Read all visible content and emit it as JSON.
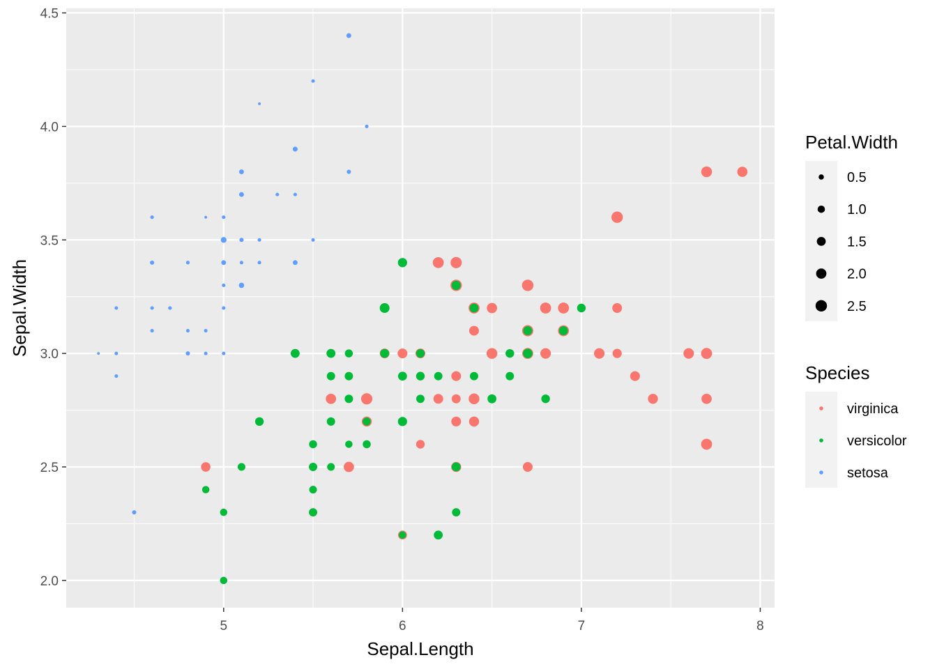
{
  "chart_data": {
    "type": "scatter",
    "xlabel": "Sepal.Length",
    "ylabel": "Sepal.Width",
    "xlim": [
      4.12,
      8.08
    ],
    "ylim": [
      1.88,
      4.52
    ],
    "x_ticks": [
      5,
      6,
      7,
      8
    ],
    "y_ticks": [
      2.0,
      2.5,
      3.0,
      3.5,
      4.0,
      4.5
    ],
    "x_tick_labels": [
      "5",
      "6",
      "7",
      "8"
    ],
    "y_tick_labels": [
      "2.0",
      "2.5",
      "3.0",
      "3.5",
      "4.0",
      "4.5"
    ],
    "grid": true,
    "legend_placement": "right",
    "size_legend": {
      "title": "Petal.Width",
      "values": [
        0.5,
        1.0,
        1.5,
        2.0,
        2.5
      ],
      "labels": [
        "0.5",
        "1.0",
        "1.5",
        "2.0",
        "2.5"
      ]
    },
    "color_legend": {
      "title": "Species",
      "labels": [
        "virginica",
        "versicolor",
        "setosa"
      ]
    },
    "colors": {
      "virginica": "#F8766D",
      "versicolor": "#00BA38",
      "setosa": "#619CFF",
      "panel": "#EBEBEB",
      "grid": "#FFFFFF"
    },
    "series": [
      {
        "name": "virginica",
        "points": [
          [
            6.3,
            3.3,
            2.5
          ],
          [
            5.8,
            2.7,
            1.9
          ],
          [
            7.1,
            3.0,
            2.1
          ],
          [
            6.3,
            2.9,
            1.8
          ],
          [
            6.5,
            3.0,
            2.2
          ],
          [
            7.6,
            3.0,
            2.1
          ],
          [
            4.9,
            2.5,
            1.7
          ],
          [
            7.3,
            2.9,
            1.8
          ],
          [
            6.7,
            2.5,
            1.8
          ],
          [
            7.2,
            3.6,
            2.5
          ],
          [
            6.5,
            3.2,
            2.0
          ],
          [
            6.4,
            2.7,
            1.9
          ],
          [
            6.8,
            3.0,
            2.1
          ],
          [
            5.7,
            2.5,
            2.0
          ],
          [
            5.8,
            2.8,
            2.4
          ],
          [
            6.4,
            3.2,
            2.3
          ],
          [
            6.5,
            3.0,
            1.8
          ],
          [
            7.7,
            3.8,
            2.2
          ],
          [
            7.7,
            2.6,
            2.3
          ],
          [
            6.0,
            2.2,
            1.5
          ],
          [
            6.9,
            3.2,
            2.3
          ],
          [
            5.6,
            2.8,
            2.0
          ],
          [
            7.7,
            2.8,
            2.0
          ],
          [
            6.3,
            2.7,
            1.8
          ],
          [
            6.7,
            3.3,
            2.1
          ],
          [
            7.2,
            3.2,
            1.8
          ],
          [
            6.2,
            2.8,
            1.8
          ],
          [
            6.1,
            3.0,
            1.8
          ],
          [
            6.4,
            2.8,
            2.1
          ],
          [
            7.2,
            3.0,
            1.6
          ],
          [
            7.4,
            2.8,
            1.9
          ],
          [
            7.9,
            3.8,
            2.0
          ],
          [
            6.4,
            2.8,
            2.2
          ],
          [
            6.3,
            2.8,
            1.5
          ],
          [
            6.1,
            2.6,
            1.4
          ],
          [
            7.7,
            3.0,
            2.3
          ],
          [
            6.3,
            3.4,
            2.4
          ],
          [
            6.4,
            3.1,
            1.8
          ],
          [
            6.0,
            3.0,
            1.8
          ],
          [
            6.9,
            3.1,
            2.1
          ],
          [
            6.7,
            3.1,
            2.4
          ],
          [
            6.9,
            3.1,
            2.3
          ],
          [
            6.8,
            3.2,
            2.3
          ],
          [
            6.7,
            3.3,
            2.5
          ],
          [
            6.7,
            3.0,
            2.3
          ],
          [
            6.3,
            2.5,
            1.9
          ],
          [
            6.5,
            3.0,
            2.0
          ],
          [
            6.2,
            3.4,
            2.3
          ],
          [
            5.9,
            3.0,
            1.8
          ]
        ]
      },
      {
        "name": "versicolor",
        "points": [
          [
            7.0,
            3.2,
            1.4
          ],
          [
            6.4,
            3.2,
            1.5
          ],
          [
            6.9,
            3.1,
            1.5
          ],
          [
            5.5,
            2.3,
            1.3
          ],
          [
            6.5,
            2.8,
            1.5
          ],
          [
            5.7,
            2.8,
            1.3
          ],
          [
            6.3,
            3.3,
            1.6
          ],
          [
            4.9,
            2.4,
            1.0
          ],
          [
            6.6,
            2.9,
            1.3
          ],
          [
            5.2,
            2.7,
            1.4
          ],
          [
            5.0,
            2.0,
            1.0
          ],
          [
            5.9,
            3.0,
            1.5
          ],
          [
            6.0,
            2.2,
            1.0
          ],
          [
            6.1,
            2.9,
            1.4
          ],
          [
            5.6,
            2.9,
            1.3
          ],
          [
            6.7,
            3.1,
            1.4
          ],
          [
            5.6,
            3.0,
            1.5
          ],
          [
            5.8,
            2.7,
            1.0
          ],
          [
            6.2,
            2.2,
            1.5
          ],
          [
            5.6,
            2.5,
            1.1
          ],
          [
            5.9,
            3.2,
            1.8
          ],
          [
            6.1,
            2.8,
            1.3
          ],
          [
            6.3,
            2.5,
            1.5
          ],
          [
            6.1,
            2.8,
            1.2
          ],
          [
            6.4,
            2.9,
            1.3
          ],
          [
            6.6,
            3.0,
            1.4
          ],
          [
            6.8,
            2.8,
            1.4
          ],
          [
            6.7,
            3.0,
            1.7
          ],
          [
            6.0,
            2.9,
            1.5
          ],
          [
            5.7,
            2.6,
            1.0
          ],
          [
            5.5,
            2.4,
            1.1
          ],
          [
            5.5,
            2.4,
            1.0
          ],
          [
            5.8,
            2.7,
            1.2
          ],
          [
            6.0,
            2.7,
            1.6
          ],
          [
            5.4,
            3.0,
            1.5
          ],
          [
            6.0,
            3.4,
            1.6
          ],
          [
            6.7,
            3.1,
            1.5
          ],
          [
            6.3,
            2.3,
            1.3
          ],
          [
            5.6,
            3.0,
            1.3
          ],
          [
            5.5,
            2.5,
            1.3
          ],
          [
            5.5,
            2.6,
            1.2
          ],
          [
            6.1,
            3.0,
            1.4
          ],
          [
            5.8,
            2.6,
            1.2
          ],
          [
            5.0,
            2.3,
            1.0
          ],
          [
            5.6,
            2.7,
            1.3
          ],
          [
            5.7,
            3.0,
            1.2
          ],
          [
            5.7,
            2.9,
            1.3
          ],
          [
            6.2,
            2.9,
            1.3
          ],
          [
            5.1,
            2.5,
            1.1
          ],
          [
            5.7,
            2.8,
            1.3
          ]
        ]
      },
      {
        "name": "setosa",
        "points": [
          [
            5.1,
            3.5,
            0.2
          ],
          [
            4.9,
            3.0,
            0.2
          ],
          [
            4.7,
            3.2,
            0.2
          ],
          [
            4.6,
            3.1,
            0.2
          ],
          [
            5.0,
            3.6,
            0.2
          ],
          [
            5.4,
            3.9,
            0.4
          ],
          [
            4.6,
            3.4,
            0.3
          ],
          [
            5.0,
            3.4,
            0.2
          ],
          [
            4.4,
            2.9,
            0.2
          ],
          [
            4.9,
            3.1,
            0.1
          ],
          [
            5.4,
            3.7,
            0.2
          ],
          [
            4.8,
            3.4,
            0.2
          ],
          [
            4.8,
            3.0,
            0.1
          ],
          [
            4.3,
            3.0,
            0.1
          ],
          [
            5.8,
            4.0,
            0.2
          ],
          [
            5.7,
            4.4,
            0.4
          ],
          [
            5.4,
            3.9,
            0.4
          ],
          [
            5.1,
            3.5,
            0.3
          ],
          [
            5.7,
            3.8,
            0.3
          ],
          [
            5.1,
            3.8,
            0.3
          ],
          [
            5.4,
            3.4,
            0.2
          ],
          [
            5.1,
            3.7,
            0.4
          ],
          [
            4.6,
            3.6,
            0.2
          ],
          [
            5.1,
            3.3,
            0.5
          ],
          [
            4.8,
            3.4,
            0.2
          ],
          [
            5.0,
            3.0,
            0.2
          ],
          [
            5.0,
            3.4,
            0.4
          ],
          [
            5.2,
            3.5,
            0.2
          ],
          [
            5.2,
            3.4,
            0.2
          ],
          [
            4.7,
            3.2,
            0.2
          ],
          [
            4.8,
            3.1,
            0.2
          ],
          [
            5.4,
            3.4,
            0.4
          ],
          [
            5.2,
            4.1,
            0.1
          ],
          [
            5.5,
            4.2,
            0.2
          ],
          [
            4.9,
            3.1,
            0.2
          ],
          [
            5.0,
            3.2,
            0.2
          ],
          [
            5.5,
            3.5,
            0.2
          ],
          [
            4.9,
            3.6,
            0.1
          ],
          [
            4.4,
            3.0,
            0.2
          ],
          [
            5.1,
            3.4,
            0.2
          ],
          [
            5.0,
            3.5,
            0.3
          ],
          [
            4.5,
            2.3,
            0.3
          ],
          [
            4.4,
            3.2,
            0.2
          ],
          [
            5.0,
            3.5,
            0.6
          ],
          [
            5.1,
            3.8,
            0.4
          ],
          [
            4.8,
            3.0,
            0.3
          ],
          [
            5.1,
            3.8,
            0.2
          ],
          [
            4.6,
            3.2,
            0.2
          ],
          [
            5.3,
            3.7,
            0.2
          ],
          [
            5.0,
            3.3,
            0.2
          ]
        ]
      }
    ]
  }
}
